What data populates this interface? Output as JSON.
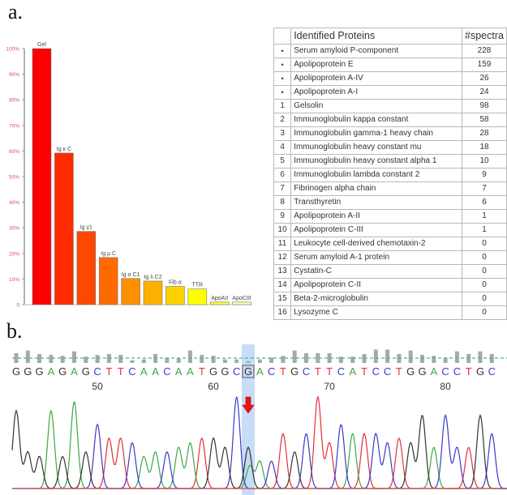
{
  "panels": {
    "a_label": "a.",
    "b_label": "b."
  },
  "chart_data": [
    {
      "type": "bar",
      "title": "",
      "xlabel": "",
      "ylabel": "",
      "ylim": [
        0,
        100
      ],
      "yticks": [
        0,
        10,
        20,
        30,
        40,
        50,
        60,
        70,
        80,
        90,
        100
      ],
      "ytick_labels": [
        "0",
        "10%",
        "20%",
        "30%",
        "40%",
        "50%",
        "60%",
        "70%",
        "80%",
        "90%",
        "100%"
      ],
      "categories": [
        "Gel",
        "Ig κ C",
        "Ig γ1",
        "Ig μ C",
        "Ig α C1",
        "Ig λ C2",
        "Fib α",
        "TTR",
        "ApoAII",
        "ApoCIII"
      ],
      "values": [
        100,
        59.2,
        28.6,
        18.4,
        10.2,
        9.2,
        7.1,
        6.1,
        1.0,
        1.0
      ],
      "colors": [
        "#fe0000",
        "#fe2a00",
        "#fe4800",
        "#fe6a00",
        "#fe9000",
        "#feb000",
        "#fed000",
        "#fefe00",
        "#fefe40",
        "#fefeb0"
      ],
      "tick_color": "#e05050",
      "grid": false
    },
    {
      "type": "line",
      "title": "Sanger sequencing chromatogram",
      "sequence": "GGGAGAGCTTCAACAATGGCGACTGCTTCATCCTGGACCTGC",
      "position_labels": [
        {
          "pos": 50,
          "label": "50"
        },
        {
          "pos": 60,
          "label": "60"
        },
        {
          "pos": 70,
          "label": "70"
        },
        {
          "pos": 80,
          "label": "80"
        }
      ],
      "start_position": 43,
      "highlighted_position": 63,
      "highlighted_base": "G",
      "base_colors": {
        "A": "#3aa845",
        "C": "#3a3acb",
        "G": "#333333",
        "T": "#e0303a"
      },
      "quality": [
        0.55,
        0.7,
        0.5,
        0.45,
        0.4,
        0.65,
        0.35,
        0.45,
        0.5,
        0.45,
        0.15,
        0.2,
        0.5,
        0.3,
        0.25,
        0.7,
        0.45,
        0.4,
        0.2,
        0.2,
        0.1,
        0.2,
        0.3,
        0.4,
        0.7,
        0.55,
        0.55,
        0.55,
        0.35,
        0.35,
        0.5,
        0.75,
        0.75,
        0.5,
        0.7,
        0.45,
        0.4,
        0.3,
        0.65,
        0.5,
        0.65,
        0.5
      ],
      "peak_heights": [
        0.85,
        0.4,
        0.35,
        0.85,
        0.35,
        0.95,
        0.4,
        0.7,
        0.55,
        0.55,
        0.5,
        0.35,
        0.4,
        0.4,
        0.45,
        0.5,
        0.55,
        0.55,
        0.45,
        1.0,
        0.45,
        0.3,
        0.3,
        0.6,
        0.4,
        0.6,
        1.0,
        0.5,
        0.7,
        0.6,
        0.6,
        0.6,
        0.5,
        0.55,
        0.5,
        0.8,
        0.45,
        0.8,
        0.45,
        0.45,
        0.8,
        0.6
      ],
      "secondary_peak_at_highlight": {
        "base": "A",
        "height": 0.25
      },
      "annotation": "mutation-arrow",
      "threshold_line_color": "#33bbaa"
    }
  ],
  "table": {
    "headers": [
      "",
      "Identified Proteins",
      "#spectra"
    ],
    "rows": [
      {
        "idx": "•",
        "name": "Serum amyloid P-component",
        "spectra": "228"
      },
      {
        "idx": "•",
        "name": "Apolipoprotein E",
        "spectra": "159"
      },
      {
        "idx": "•",
        "name": "Apolipoprotein A-IV",
        "spectra": "26"
      },
      {
        "idx": "•",
        "name": "Apolipoprotein A-I",
        "spectra": "24"
      },
      {
        "idx": "1",
        "name": "Gelsolin",
        "spectra": "98"
      },
      {
        "idx": "2",
        "name": "Immunoglobulin kappa constant",
        "spectra": "58"
      },
      {
        "idx": "3",
        "name": "Immunoglobulin gamma-1 heavy chain",
        "spectra": "28"
      },
      {
        "idx": "4",
        "name": "Immunoglobulin heavy constant mu",
        "spectra": "18"
      },
      {
        "idx": "5",
        "name": "Immunoglobulin heavy constant alpha 1",
        "spectra": "10"
      },
      {
        "idx": "6",
        "name": "Immunoglobulin lambda constant 2",
        "spectra": "9"
      },
      {
        "idx": "7",
        "name": "Fibrinogen alpha chain",
        "spectra": "7"
      },
      {
        "idx": "8",
        "name": "Transthyretin",
        "spectra": "6"
      },
      {
        "idx": "9",
        "name": "Apolipoprotein A-II",
        "spectra": "1"
      },
      {
        "idx": "10",
        "name": "Apolipoprotein C-III",
        "spectra": "1"
      },
      {
        "idx": "11",
        "name": "Leukocyte cell-derived chemotaxin-2",
        "spectra": "0"
      },
      {
        "idx": "12",
        "name": "Serum amyloid A-1 protein",
        "spectra": "0"
      },
      {
        "idx": "13",
        "name": "Cystatin-C",
        "spectra": "0"
      },
      {
        "idx": "14",
        "name": "Apolipoprotein C-II",
        "spectra": "0"
      },
      {
        "idx": "15",
        "name": "Beta-2-microglobulin",
        "spectra": "0"
      },
      {
        "idx": "16",
        "name": "Lysozyme C",
        "spectra": "0"
      }
    ]
  }
}
